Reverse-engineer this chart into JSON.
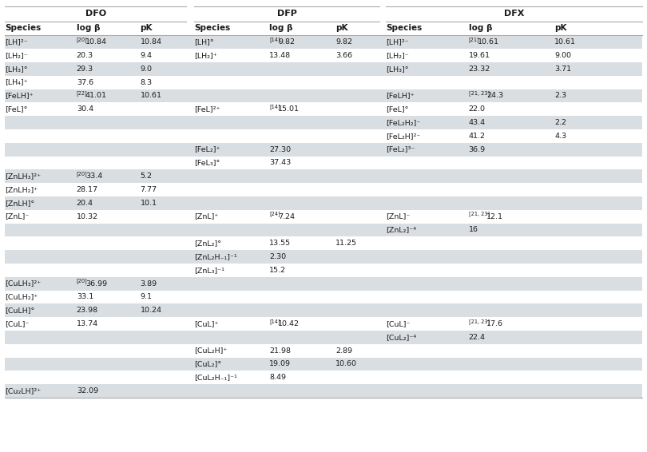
{
  "shade_color": "#d9dee3",
  "white_color": "#ffffff",
  "text_color": "#1a1a1a",
  "line_color": "#aaaaaa",
  "rows": [
    {
      "dfo": [
        "[LH]²⁻",
        "20",
        "10.84",
        "10.84"
      ],
      "dfp": [
        "[LH]°",
        "14",
        "9.82",
        "9.82"
      ],
      "dfx": [
        "[LH]²⁻",
        "21",
        "10.61",
        "10.61"
      ],
      "shade": true
    },
    {
      "dfo": [
        "[LH₂]⁻",
        "",
        "20.3",
        "9.4"
      ],
      "dfp": [
        "[LH₂]⁺",
        "",
        "13.48",
        "3.66"
      ],
      "dfx": [
        "[LH₂]⁻",
        "",
        "19.61",
        "9.00"
      ],
      "shade": false
    },
    {
      "dfo": [
        "[LH₃]°",
        "",
        "29.3",
        "9.0"
      ],
      "dfp": [
        "",
        "",
        "",
        ""
      ],
      "dfx": [
        "[LH₃]°",
        "",
        "23.32",
        "3.71"
      ],
      "shade": true
    },
    {
      "dfo": [
        "[LH₄]⁺",
        "",
        "37.6",
        "8.3"
      ],
      "dfp": [
        "",
        "",
        "",
        ""
      ],
      "dfx": [
        "",
        "",
        "",
        ""
      ],
      "shade": false
    },
    {
      "dfo": [
        "[FeLH]⁺",
        "22",
        "41.01",
        "10.61"
      ],
      "dfp": [
        "",
        "",
        "",
        ""
      ],
      "dfx": [
        "[FeLH]⁺",
        "21, 23",
        "24.3",
        "2.3"
      ],
      "shade": true
    },
    {
      "dfo": [
        "[FeL]°",
        "",
        "30.4",
        ""
      ],
      "dfp": [
        "[FeL]²⁺",
        "14",
        "15.01",
        ""
      ],
      "dfx": [
        "[FeL]°",
        "",
        "22.0",
        ""
      ],
      "shade": false
    },
    {
      "dfo": [
        "",
        "",
        "",
        ""
      ],
      "dfp": [
        "",
        "",
        "",
        ""
      ],
      "dfx": [
        "[FeL₂H₂]⁻",
        "",
        "43.4",
        "2.2"
      ],
      "shade": true
    },
    {
      "dfo": [
        "",
        "",
        "",
        ""
      ],
      "dfp": [
        "",
        "",
        "",
        ""
      ],
      "dfx": [
        "[FeL₂H]²⁻",
        "",
        "41.2",
        "4.3"
      ],
      "shade": false
    },
    {
      "dfo": [
        "",
        "",
        "",
        ""
      ],
      "dfp": [
        "[FeL₂]⁺",
        "",
        "27.30",
        ""
      ],
      "dfx": [
        "[FeL₂]³⁻",
        "",
        "36.9",
        ""
      ],
      "shade": true
    },
    {
      "dfo": [
        "",
        "",
        "",
        ""
      ],
      "dfp": [
        "[FeL₃]°",
        "",
        "37.43",
        ""
      ],
      "dfx": [
        "",
        "",
        "",
        ""
      ],
      "shade": false
    },
    {
      "dfo": [
        "[ZnLH₃]²⁺",
        "20",
        "33.4",
        "5.2"
      ],
      "dfp": [
        "",
        "",
        "",
        ""
      ],
      "dfx": [
        "",
        "",
        "",
        ""
      ],
      "shade": true
    },
    {
      "dfo": [
        "[ZnLH₂]⁺",
        "",
        "28.17",
        "7.77"
      ],
      "dfp": [
        "",
        "",
        "",
        ""
      ],
      "dfx": [
        "",
        "",
        "",
        ""
      ],
      "shade": false
    },
    {
      "dfo": [
        "[ZnLH]°",
        "",
        "20.4",
        "10.1"
      ],
      "dfp": [
        "",
        "",
        "",
        ""
      ],
      "dfx": [
        "",
        "",
        "",
        ""
      ],
      "shade": true
    },
    {
      "dfo": [
        "[ZnL]⁻",
        "",
        "10.32",
        ""
      ],
      "dfp": [
        "[ZnL]⁺",
        "24",
        "7.24",
        ""
      ],
      "dfx": [
        "[ZnL]⁻",
        "21, 23",
        "12.1",
        ""
      ],
      "shade": false
    },
    {
      "dfo": [
        "",
        "",
        "",
        ""
      ],
      "dfp": [
        "",
        "",
        "",
        ""
      ],
      "dfx": [
        "[ZnL₂]⁻⁴",
        "",
        "16",
        ""
      ],
      "shade": true
    },
    {
      "dfo": [
        "",
        "",
        "",
        ""
      ],
      "dfp": [
        "[ZnL₂]°",
        "",
        "13.55",
        "11.25"
      ],
      "dfx": [
        "",
        "",
        "",
        ""
      ],
      "shade": false
    },
    {
      "dfo": [
        "",
        "",
        "",
        ""
      ],
      "dfp": [
        "[ZnL₂H₋₁]⁻¹",
        "",
        "2.30",
        ""
      ],
      "dfx": [
        "",
        "",
        "",
        ""
      ],
      "shade": true
    },
    {
      "dfo": [
        "",
        "",
        "",
        ""
      ],
      "dfp": [
        "[ZnL₃]⁻¹",
        "",
        "15.2",
        ""
      ],
      "dfx": [
        "",
        "",
        "",
        ""
      ],
      "shade": false
    },
    {
      "dfo": [
        "[CuLH₃]²⁺",
        "20",
        "36.99",
        "3.89"
      ],
      "dfp": [
        "",
        "",
        "",
        ""
      ],
      "dfx": [
        "",
        "",
        "",
        ""
      ],
      "shade": true
    },
    {
      "dfo": [
        "[CuLH₂]⁺",
        "",
        "33.1",
        "9.1"
      ],
      "dfp": [
        "",
        "",
        "",
        ""
      ],
      "dfx": [
        "",
        "",
        "",
        ""
      ],
      "shade": false
    },
    {
      "dfo": [
        "[CuLH]°",
        "",
        "23.98",
        "10.24"
      ],
      "dfp": [
        "",
        "",
        "",
        ""
      ],
      "dfx": [
        "",
        "",
        "",
        ""
      ],
      "shade": true
    },
    {
      "dfo": [
        "[CuL]⁻",
        "",
        "13.74",
        ""
      ],
      "dfp": [
        "[CuL]⁺",
        "14",
        "10.42",
        ""
      ],
      "dfx": [
        "[CuL]⁻",
        "21, 23",
        "17.6",
        ""
      ],
      "shade": false
    },
    {
      "dfo": [
        "",
        "",
        "",
        ""
      ],
      "dfp": [
        "",
        "",
        "",
        ""
      ],
      "dfx": [
        "[CuL₂]⁻⁴",
        "",
        "22.4",
        ""
      ],
      "shade": true
    },
    {
      "dfo": [
        "",
        "",
        "",
        ""
      ],
      "dfp": [
        "[CuL₂H]⁺",
        "",
        "21.98",
        "2.89"
      ],
      "dfx": [
        "",
        "",
        "",
        ""
      ],
      "shade": false
    },
    {
      "dfo": [
        "",
        "",
        "",
        ""
      ],
      "dfp": [
        "[CuL₂]°",
        "",
        "19.09",
        "10.60"
      ],
      "dfx": [
        "",
        "",
        "",
        ""
      ],
      "shade": true
    },
    {
      "dfo": [
        "",
        "",
        "",
        ""
      ],
      "dfp": [
        "[CuL₂H₋₁]⁻¹",
        "",
        "8.49",
        ""
      ],
      "dfx": [
        "",
        "",
        "",
        ""
      ],
      "shade": false
    },
    {
      "dfo": [
        "[Cu₂LH]²⁺",
        "",
        "32.09",
        ""
      ],
      "dfp": [
        "",
        "",
        "",
        ""
      ],
      "dfx": [
        "",
        "",
        "",
        ""
      ],
      "shade": true
    }
  ]
}
